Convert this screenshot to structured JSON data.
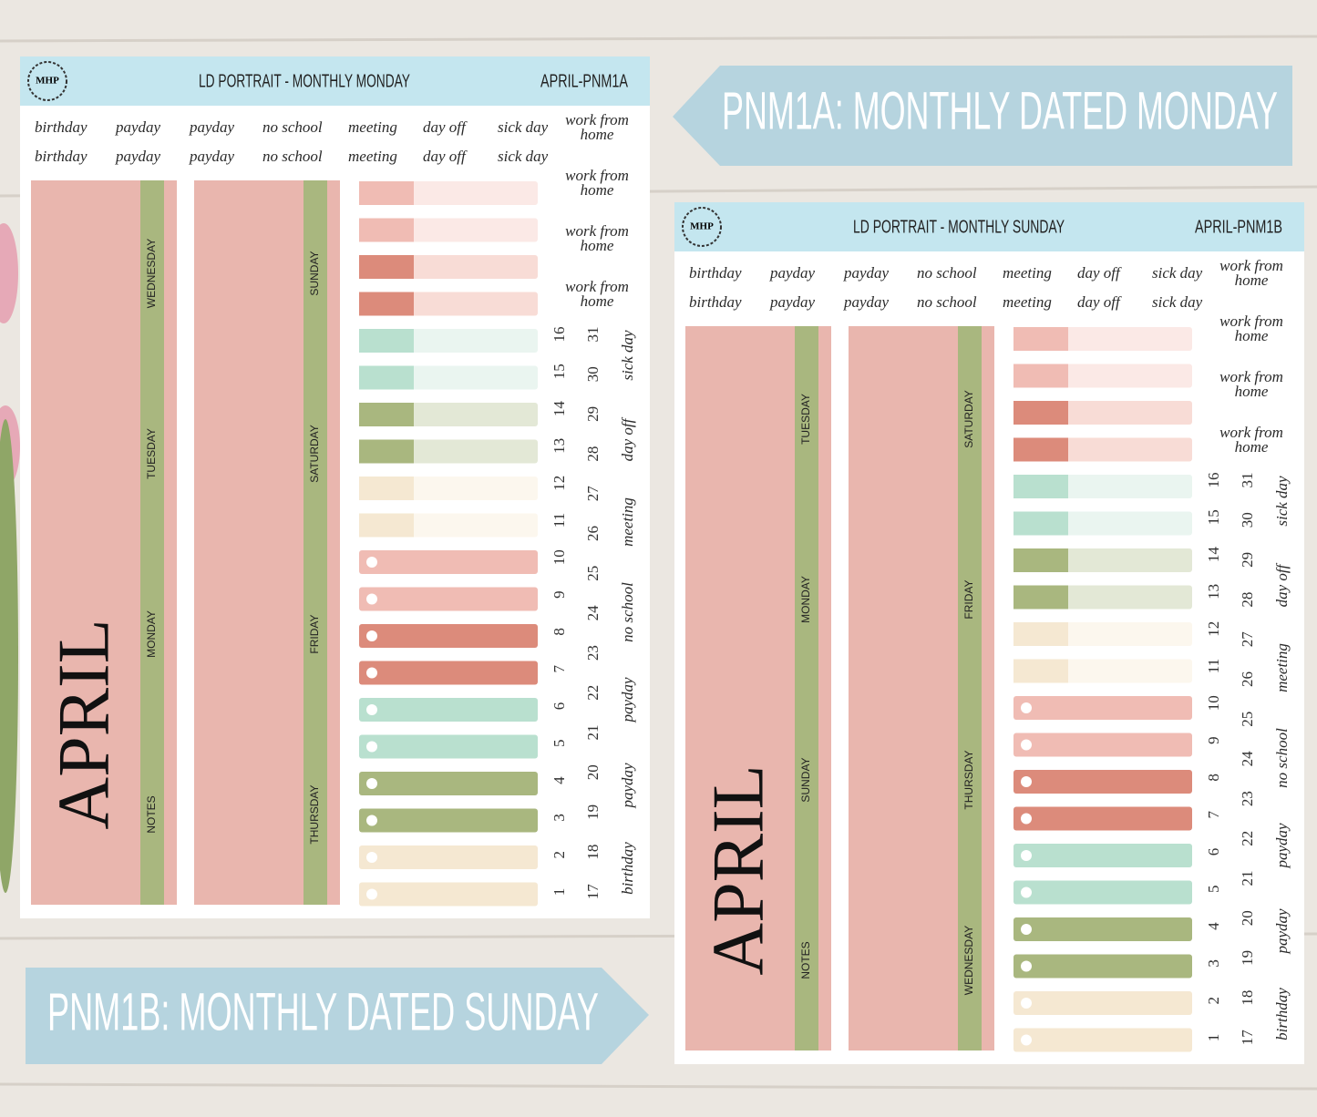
{
  "banners": [
    "PNM1A: MONTHLY DATED MONDAY",
    "PNM1B: MONTHLY DATED SUNDAY"
  ],
  "sheets": [
    {
      "logo": "MHP",
      "title": "LD PORTRAIT - MONTHLY MONDAY",
      "code": "APRIL-PNM1A",
      "label_rows": [
        [
          "birthday",
          "payday",
          "payday",
          "no school",
          "meeting",
          "day off",
          "sick day"
        ],
        [
          "birthday",
          "payday",
          "payday",
          "no school",
          "meeting",
          "day off",
          "sick day"
        ]
      ],
      "work_from_home": [
        "work from home",
        "work from home",
        "work from home",
        "work from home"
      ],
      "month": "APRIL",
      "column_1_days": [
        "WEDNESDAY",
        "TUESDAY",
        "MONDAY",
        "NOTES"
      ],
      "column_2_days": [
        "SUNDAY",
        "SATURDAY",
        "FRIDAY",
        "THURSDAY"
      ],
      "dates_first_half": [
        16,
        15,
        14,
        13,
        12,
        11,
        10,
        9,
        8,
        7,
        6,
        5,
        4,
        3,
        2,
        1
      ],
      "dates_second_half": [
        31,
        30,
        29,
        28,
        27,
        26,
        25,
        24,
        23,
        22,
        21,
        20,
        19,
        18,
        17
      ],
      "side_labels": [
        "sick day",
        "day off",
        "meeting",
        "no school",
        "payday",
        "payday",
        "birthday"
      ]
    },
    {
      "logo": "MHP",
      "title": "LD PORTRAIT - MONTHLY SUNDAY",
      "code": "APRIL-PNM1B",
      "label_rows": [
        [
          "birthday",
          "payday",
          "payday",
          "no school",
          "meeting",
          "day off",
          "sick day"
        ],
        [
          "birthday",
          "payday",
          "payday",
          "no school",
          "meeting",
          "day off",
          "sick day"
        ]
      ],
      "work_from_home": [
        "work from home",
        "work from home",
        "work from home",
        "work from home"
      ],
      "month": "APRIL",
      "column_1_days": [
        "TUESDAY",
        "MONDAY",
        "SUNDAY",
        "NOTES"
      ],
      "column_2_days": [
        "SATURDAY",
        "FRIDAY",
        "THURSDAY",
        "WEDNESDAY"
      ],
      "dates_first_half": [
        16,
        15,
        14,
        13,
        12,
        11,
        10,
        9,
        8,
        7,
        6,
        5,
        4,
        3,
        2,
        1
      ],
      "dates_second_half": [
        31,
        30,
        29,
        28,
        27,
        26,
        25,
        24,
        23,
        22,
        21,
        20,
        19,
        18,
        17
      ],
      "side_labels": [
        "sick day",
        "day off",
        "meeting",
        "no school",
        "payday",
        "payday",
        "birthday"
      ]
    }
  ]
}
